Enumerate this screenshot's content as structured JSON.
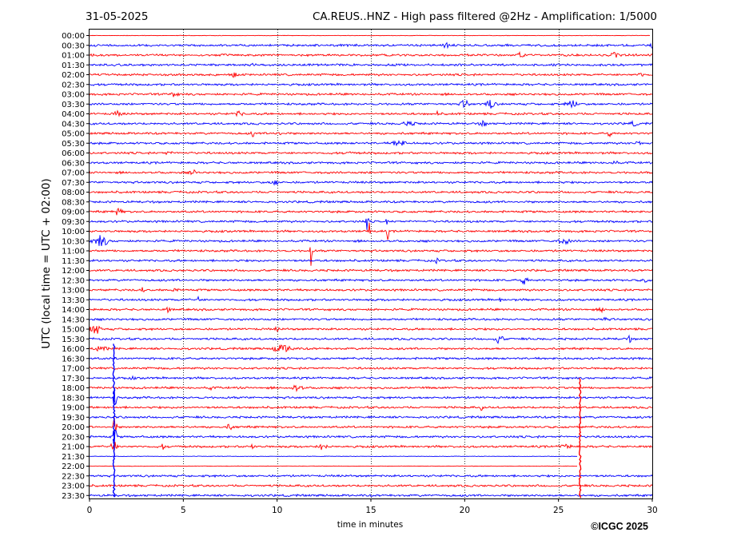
{
  "header": {
    "date": "31-05-2025",
    "title": "CA.REUS..HNZ - High pass filtered @2Hz - Amplification: 1/5000"
  },
  "credit": "©ICGC 2025",
  "chart_data": {
    "type": "line",
    "title": "CA.REUS..HNZ - High pass filtered @2Hz - Amplification: 1/5000",
    "xlabel": "time in minutes",
    "ylabel": "UTC (local time = UTC + 02:00)",
    "xlim": [
      0,
      30
    ],
    "x_ticks": [
      "0",
      "5",
      "10",
      "15",
      "20",
      "25",
      "30"
    ],
    "vertical_gridlines_minutes": [
      5,
      10,
      15,
      20,
      25
    ],
    "grid": "vertical dotted",
    "series_colors": [
      "#ff0000",
      "#0000ff"
    ],
    "rows": [
      {
        "label": "00:00",
        "color": "#ff0000"
      },
      {
        "label": "00:30",
        "color": "#0000ff"
      },
      {
        "label": "01:00",
        "color": "#ff0000"
      },
      {
        "label": "01:30",
        "color": "#0000ff"
      },
      {
        "label": "02:00",
        "color": "#ff0000"
      },
      {
        "label": "02:30",
        "color": "#0000ff"
      },
      {
        "label": "03:00",
        "color": "#ff0000"
      },
      {
        "label": "03:30",
        "color": "#0000ff"
      },
      {
        "label": "04:00",
        "color": "#ff0000"
      },
      {
        "label": "04:30",
        "color": "#0000ff"
      },
      {
        "label": "05:00",
        "color": "#ff0000"
      },
      {
        "label": "05:30",
        "color": "#0000ff"
      },
      {
        "label": "06:00",
        "color": "#ff0000"
      },
      {
        "label": "06:30",
        "color": "#0000ff"
      },
      {
        "label": "07:00",
        "color": "#ff0000"
      },
      {
        "label": "07:30",
        "color": "#0000ff"
      },
      {
        "label": "08:00",
        "color": "#ff0000"
      },
      {
        "label": "08:30",
        "color": "#0000ff"
      },
      {
        "label": "09:00",
        "color": "#ff0000"
      },
      {
        "label": "09:30",
        "color": "#0000ff"
      },
      {
        "label": "10:00",
        "color": "#ff0000"
      },
      {
        "label": "10:30",
        "color": "#0000ff"
      },
      {
        "label": "11:00",
        "color": "#ff0000"
      },
      {
        "label": "11:30",
        "color": "#0000ff"
      },
      {
        "label": "12:00",
        "color": "#ff0000"
      },
      {
        "label": "12:30",
        "color": "#0000ff"
      },
      {
        "label": "13:00",
        "color": "#ff0000"
      },
      {
        "label": "13:30",
        "color": "#0000ff"
      },
      {
        "label": "14:00",
        "color": "#ff0000"
      },
      {
        "label": "14:30",
        "color": "#0000ff"
      },
      {
        "label": "15:00",
        "color": "#ff0000"
      },
      {
        "label": "15:30",
        "color": "#0000ff"
      },
      {
        "label": "16:00",
        "color": "#ff0000"
      },
      {
        "label": "16:30",
        "color": "#0000ff"
      },
      {
        "label": "17:00",
        "color": "#ff0000"
      },
      {
        "label": "17:30",
        "color": "#0000ff"
      },
      {
        "label": "18:00",
        "color": "#ff0000"
      },
      {
        "label": "18:30",
        "color": "#0000ff"
      },
      {
        "label": "19:00",
        "color": "#ff0000"
      },
      {
        "label": "19:30",
        "color": "#0000ff"
      },
      {
        "label": "20:00",
        "color": "#ff0000"
      },
      {
        "label": "20:30",
        "color": "#0000ff"
      },
      {
        "label": "21:00",
        "color": "#ff0000"
      },
      {
        "label": "21:30",
        "color": "#0000ff"
      },
      {
        "label": "22:00",
        "color": "#ff0000"
      },
      {
        "label": "22:30",
        "color": "#0000ff"
      },
      {
        "label": "23:00",
        "color": "#ff0000"
      },
      {
        "label": "23:30",
        "color": "#0000ff"
      }
    ]
  }
}
